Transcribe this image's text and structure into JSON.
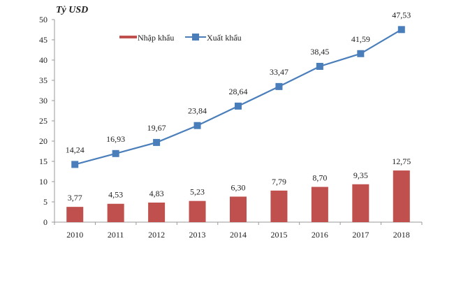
{
  "chart_data": {
    "type": "bar+line",
    "ylabel": "Tỷ USD",
    "ylim": [
      0,
      50
    ],
    "yticks": [
      0,
      5,
      10,
      15,
      20,
      25,
      30,
      35,
      40,
      45,
      50
    ],
    "categories": [
      "2010",
      "2011",
      "2012",
      "2013",
      "2014",
      "2015",
      "2016",
      "2017",
      "2018"
    ],
    "legend_position": "top-left",
    "series": [
      {
        "name": "Nhập khẩu",
        "type": "bar",
        "color": "#c0504d",
        "values": [
          3.77,
          4.53,
          4.83,
          5.23,
          6.3,
          7.79,
          8.7,
          9.35,
          12.75
        ],
        "labels": [
          "3,77",
          "4,53",
          "4,83",
          "5,23",
          "6,30",
          "7,79",
          "8,70",
          "9,35",
          "12,75"
        ]
      },
      {
        "name": "Xuất khẩu",
        "type": "line",
        "color": "#4a7ebb",
        "values": [
          14.24,
          16.93,
          19.67,
          23.84,
          28.64,
          33.47,
          38.45,
          41.59,
          47.53
        ],
        "labels": [
          "14,24",
          "16,93",
          "19,67",
          "23,84",
          "28,64",
          "33,47",
          "38,45",
          "41,59",
          "47,53"
        ]
      }
    ]
  }
}
